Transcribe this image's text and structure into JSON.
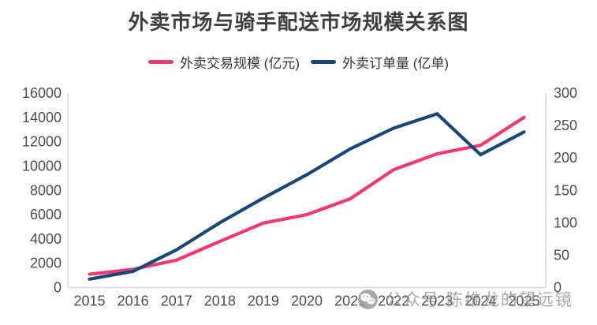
{
  "title": "外卖市场与骑手配送市场规模关系图",
  "watermark": {
    "icon": "wechat-icon",
    "text": "公众号 陈维龙的望远镜"
  },
  "colors": {
    "pink": "#F03A6E",
    "navy": "#1A4876",
    "axis_line": "#D6D6D6",
    "tick_text": "#4D4D4D",
    "title_text": "#3F3F3F",
    "watermark_gray": "#949494"
  },
  "chart_data": {
    "type": "line",
    "title": "外卖市场与骑手配送市场规模关系图",
    "categories": [
      "2015",
      "2016",
      "2017",
      "2018",
      "2019",
      "2020",
      "2021",
      "2022",
      "2023",
      "2024",
      "2025"
    ],
    "series": [
      {
        "name": "外卖交易规模 (亿元)",
        "yaxis": "left",
        "color": "#F03A6E",
        "values": [
          1100,
          1500,
          2250,
          3800,
          5300,
          6000,
          7300,
          9700,
          11000,
          11700,
          14000
        ]
      },
      {
        "name": "外卖订单量 (亿单)",
        "yaxis": "right",
        "color": "#1A4876",
        "values": [
          13,
          25,
          58,
          100,
          138,
          174,
          214,
          246,
          268,
          205,
          240
        ]
      }
    ],
    "left_axis": {
      "min": 0,
      "max": 16000,
      "step": 2000,
      "tick_labels": [
        "0",
        "2000",
        "4000",
        "6000",
        "8000",
        "10000",
        "12000",
        "14000",
        "16000"
      ]
    },
    "right_axis": {
      "min": 0,
      "max": 300,
      "step": 50,
      "tick_labels": [
        "0",
        "50",
        "100",
        "150",
        "200",
        "250",
        "300"
      ]
    },
    "grid": false,
    "legend_position": "top-center"
  }
}
